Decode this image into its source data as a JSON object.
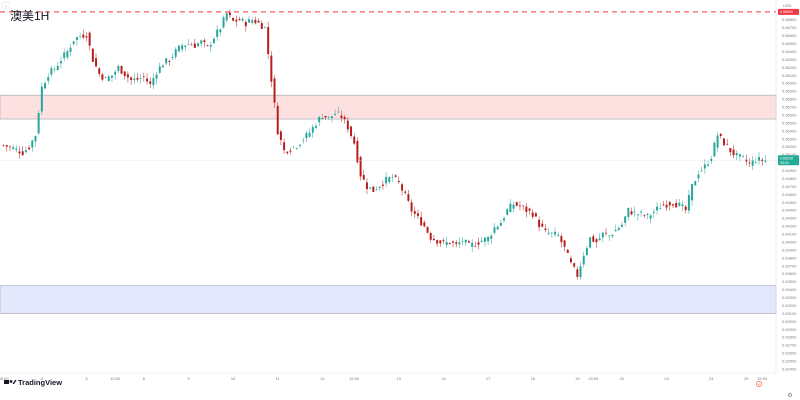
{
  "chart_data": {
    "type": "candlestick",
    "title": "澳美1H",
    "currency": "USD",
    "ylim": [
      0.6235,
      0.6705
    ],
    "y_ticks": [
      "0.67000",
      "0.66900",
      "0.66800",
      "0.66700",
      "0.66600",
      "0.66500",
      "0.66400",
      "0.66300",
      "0.66200",
      "0.66100",
      "0.66000",
      "0.65900",
      "0.65800",
      "0.65700",
      "0.65600",
      "0.65500",
      "0.65400",
      "0.65300",
      "0.65200",
      "0.65100",
      "0.65000",
      "0.64900",
      "0.64800",
      "0.64700",
      "0.64600",
      "0.64500",
      "0.64400",
      "0.64300",
      "0.64200",
      "0.64100",
      "0.64000",
      "0.63900",
      "0.63800",
      "0.63700",
      "0.63600",
      "0.63500",
      "0.63400",
      "0.63300",
      "0.63200",
      "0.63100",
      "0.63000",
      "0.62900",
      "0.62800",
      "0.62700",
      "0.62600",
      "0.62500",
      "0.62400"
    ],
    "x_ticks": [
      {
        "i": 0,
        "label": "06:00"
      },
      {
        "i": 12,
        "label": "4"
      },
      {
        "i": 26,
        "label": "5"
      },
      {
        "i": 35,
        "label": "12:00"
      },
      {
        "i": 44,
        "label": "8"
      },
      {
        "i": 58,
        "label": "9"
      },
      {
        "i": 72,
        "label": "10"
      },
      {
        "i": 86,
        "label": "11"
      },
      {
        "i": 100,
        "label": "12"
      },
      {
        "i": 110,
        "label": "15:00"
      },
      {
        "i": 124,
        "label": "15"
      },
      {
        "i": 138,
        "label": "16"
      },
      {
        "i": 152,
        "label": "17"
      },
      {
        "i": 166,
        "label": "18"
      },
      {
        "i": 180,
        "label": "19"
      },
      {
        "i": 185,
        "label": "15:00"
      },
      {
        "i": 194,
        "label": "22"
      },
      {
        "i": 208,
        "label": "23"
      },
      {
        "i": 222,
        "label": "24"
      },
      {
        "i": 233,
        "label": "25"
      },
      {
        "i": 238,
        "label": "15:00"
      }
    ],
    "n_bars": 240,
    "anchors": [
      [
        0,
        0.6522
      ],
      [
        3,
        0.6518
      ],
      [
        6,
        0.6513
      ],
      [
        8,
        0.652
      ],
      [
        10,
        0.6535
      ],
      [
        12,
        0.6595
      ],
      [
        14,
        0.6612
      ],
      [
        16,
        0.6618
      ],
      [
        18,
        0.663
      ],
      [
        20,
        0.664
      ],
      [
        22,
        0.6655
      ],
      [
        24,
        0.666
      ],
      [
        26,
        0.6662
      ],
      [
        28,
        0.663
      ],
      [
        30,
        0.6612
      ],
      [
        32,
        0.6605
      ],
      [
        34,
        0.661
      ],
      [
        36,
        0.662
      ],
      [
        38,
        0.6612
      ],
      [
        40,
        0.6604
      ],
      [
        42,
        0.6605
      ],
      [
        44,
        0.6608
      ],
      [
        46,
        0.6598
      ],
      [
        48,
        0.6615
      ],
      [
        50,
        0.6625
      ],
      [
        52,
        0.663
      ],
      [
        54,
        0.664
      ],
      [
        56,
        0.6648
      ],
      [
        58,
        0.665
      ],
      [
        60,
        0.6648
      ],
      [
        62,
        0.6652
      ],
      [
        64,
        0.6645
      ],
      [
        66,
        0.6658
      ],
      [
        68,
        0.667
      ],
      [
        70,
        0.6688
      ],
      [
        72,
        0.6678
      ],
      [
        74,
        0.668
      ],
      [
        76,
        0.6676
      ],
      [
        78,
        0.668
      ],
      [
        80,
        0.6676
      ],
      [
        82,
        0.667
      ],
      [
        84,
        0.6605
      ],
      [
        86,
        0.654
      ],
      [
        88,
        0.6515
      ],
      [
        90,
        0.6518
      ],
      [
        92,
        0.6522
      ],
      [
        94,
        0.653
      ],
      [
        96,
        0.6538
      ],
      [
        98,
        0.655
      ],
      [
        100,
        0.656
      ],
      [
        102,
        0.6556
      ],
      [
        104,
        0.6562
      ],
      [
        106,
        0.6558
      ],
      [
        108,
        0.6545
      ],
      [
        110,
        0.6525
      ],
      [
        112,
        0.6485
      ],
      [
        114,
        0.647
      ],
      [
        116,
        0.6465
      ],
      [
        118,
        0.6472
      ],
      [
        120,
        0.6478
      ],
      [
        122,
        0.6482
      ],
      [
        124,
        0.6474
      ],
      [
        126,
        0.6458
      ],
      [
        128,
        0.644
      ],
      [
        130,
        0.643
      ],
      [
        132,
        0.642
      ],
      [
        134,
        0.6406
      ],
      [
        136,
        0.6402
      ],
      [
        138,
        0.6398
      ],
      [
        140,
        0.64
      ],
      [
        142,
        0.6396
      ],
      [
        144,
        0.6402
      ],
      [
        146,
        0.6395
      ],
      [
        148,
        0.6398
      ],
      [
        150,
        0.6402
      ],
      [
        152,
        0.6405
      ],
      [
        154,
        0.6418
      ],
      [
        156,
        0.6425
      ],
      [
        158,
        0.644
      ],
      [
        160,
        0.6448
      ],
      [
        162,
        0.6445
      ],
      [
        164,
        0.644
      ],
      [
        166,
        0.6436
      ],
      [
        168,
        0.6422
      ],
      [
        170,
        0.6412
      ],
      [
        172,
        0.641
      ],
      [
        174,
        0.6408
      ],
      [
        176,
        0.6392
      ],
      [
        178,
        0.6372
      ],
      [
        180,
        0.6358
      ],
      [
        182,
        0.6385
      ],
      [
        184,
        0.6405
      ],
      [
        186,
        0.64
      ],
      [
        188,
        0.641
      ],
      [
        190,
        0.6408
      ],
      [
        192,
        0.6415
      ],
      [
        194,
        0.6422
      ],
      [
        196,
        0.644
      ],
      [
        198,
        0.6436
      ],
      [
        200,
        0.6435
      ],
      [
        202,
        0.6432
      ],
      [
        204,
        0.6438
      ],
      [
        206,
        0.6445
      ],
      [
        208,
        0.6448
      ],
      [
        210,
        0.645
      ],
      [
        212,
        0.6446
      ],
      [
        214,
        0.644
      ],
      [
        216,
        0.647
      ],
      [
        218,
        0.6488
      ],
      [
        220,
        0.6495
      ],
      [
        222,
        0.6508
      ],
      [
        224,
        0.6535
      ],
      [
        226,
        0.6525
      ],
      [
        228,
        0.6515
      ],
      [
        230,
        0.6508
      ],
      [
        232,
        0.6505
      ],
      [
        234,
        0.6498
      ],
      [
        236,
        0.6504
      ],
      [
        238,
        0.6503
      ],
      [
        239,
        0.6503
      ]
    ],
    "resistance_line": 0.669,
    "current_price": 0.6503,
    "zones": [
      {
        "from": 0.6555,
        "to": 0.6585,
        "fill": "#fde0e0",
        "stroke": "#b2b5be"
      },
      {
        "from": 0.631,
        "to": 0.6345,
        "fill": "#e3e8fc",
        "stroke": "#b2b5be"
      }
    ],
    "colors": {
      "up": "#26a69a",
      "down": "#b71c1c",
      "resistance": "#f23645",
      "price_tag": "#22ab94",
      "resist_tag": "#f23645"
    }
  },
  "ui": {
    "currency_label": "USD",
    "logo_text": "TradingView",
    "gear_icon": "gear-icon",
    "expand_icon": "chevron-down-icon",
    "price_tag_value": "0.65030",
    "price_tag_sub": "40:01",
    "resist_tag_value": "0.66900"
  }
}
